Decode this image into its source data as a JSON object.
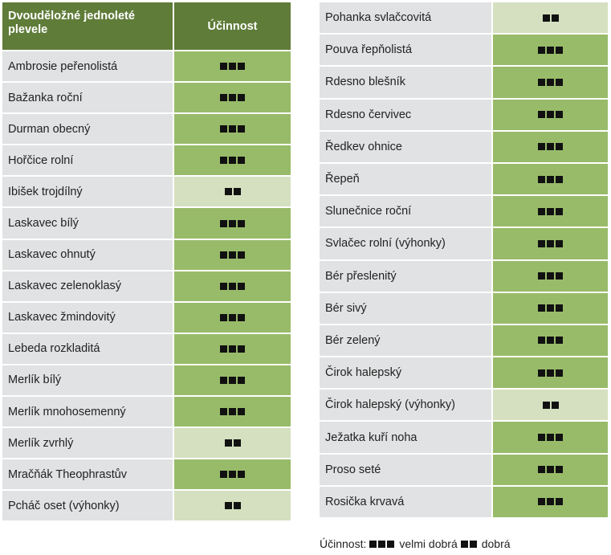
{
  "header": {
    "name_label": "Dvouděložné jednoleté plevele",
    "effect_label": "Účinnost"
  },
  "left_rows": [
    {
      "name": "Ambrosie peřenolistá",
      "rating": 3
    },
    {
      "name": "Bažanka roční",
      "rating": 3
    },
    {
      "name": "Durman obecný",
      "rating": 3
    },
    {
      "name": "Hořčice rolní",
      "rating": 3
    },
    {
      "name": "Ibišek trojdílný",
      "rating": 2
    },
    {
      "name": "Laskavec bílý",
      "rating": 3
    },
    {
      "name": "Laskavec ohnutý",
      "rating": 3
    },
    {
      "name": "Laskavec zelenoklasý",
      "rating": 3
    },
    {
      "name": "Laskavec žmindovitý",
      "rating": 3
    },
    {
      "name": "Lebeda rozkladitá",
      "rating": 3
    },
    {
      "name": "Merlík bílý",
      "rating": 3
    },
    {
      "name": "Merlík mnohosemenný",
      "rating": 3
    },
    {
      "name": "Merlík zvrhlý",
      "rating": 2
    },
    {
      "name": "Mračňák Theophrastův",
      "rating": 3
    },
    {
      "name": "Pcháč oset (výhonky)",
      "rating": 2
    }
  ],
  "right_rows": [
    {
      "name": "Pohanka svlačcovitá",
      "rating": 2
    },
    {
      "name": "Pouva řepňolistá",
      "rating": 3
    },
    {
      "name": "Rdesno blešník",
      "rating": 3
    },
    {
      "name": "Rdesno červivec",
      "rating": 3
    },
    {
      "name": "Ředkev ohnice",
      "rating": 3
    },
    {
      "name": "Řepeň",
      "rating": 3
    },
    {
      "name": "Slunečnice roční",
      "rating": 3
    },
    {
      "name": "Svlačec rolní (výhonky)",
      "rating": 3
    },
    {
      "name": "Bér přeslenitý",
      "rating": 3
    },
    {
      "name": "Bér sivý",
      "rating": 3
    },
    {
      "name": "Bér zelený",
      "rating": 3
    },
    {
      "name": "Čirok halepský",
      "rating": 3
    },
    {
      "name": "Čirok halepský (výhonky)",
      "rating": 2
    },
    {
      "name": "Ježatka kuří noha",
      "rating": 3
    },
    {
      "name": "Proso seté",
      "rating": 3
    },
    {
      "name": "Rosička krvavá",
      "rating": 3
    }
  ],
  "legend": {
    "prefix": "Účinnost:",
    "very_good": "velmi dobrá",
    "good": "dobrá"
  },
  "colors": {
    "header_bg": "#5f7c39",
    "very_good_bg": "#98bb69",
    "good_bg": "#d4e0bf",
    "name_bg": "#e0e2e3"
  }
}
